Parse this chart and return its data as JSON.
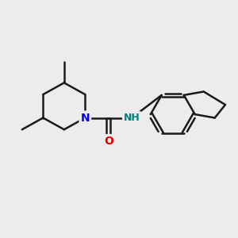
{
  "bg_color": "#ececec",
  "bond_color": "#1a1a1a",
  "N_color": "#0000ee",
  "NH_color": "#008080",
  "O_color": "#dd0000",
  "line_width": 1.8,
  "font_size_N": 10,
  "font_size_NH": 9,
  "font_size_O": 10,
  "fig_width": 3.0,
  "fig_height": 3.0,
  "dpi": 100,
  "xlim": [
    0,
    10
  ],
  "ylim": [
    0,
    10
  ]
}
